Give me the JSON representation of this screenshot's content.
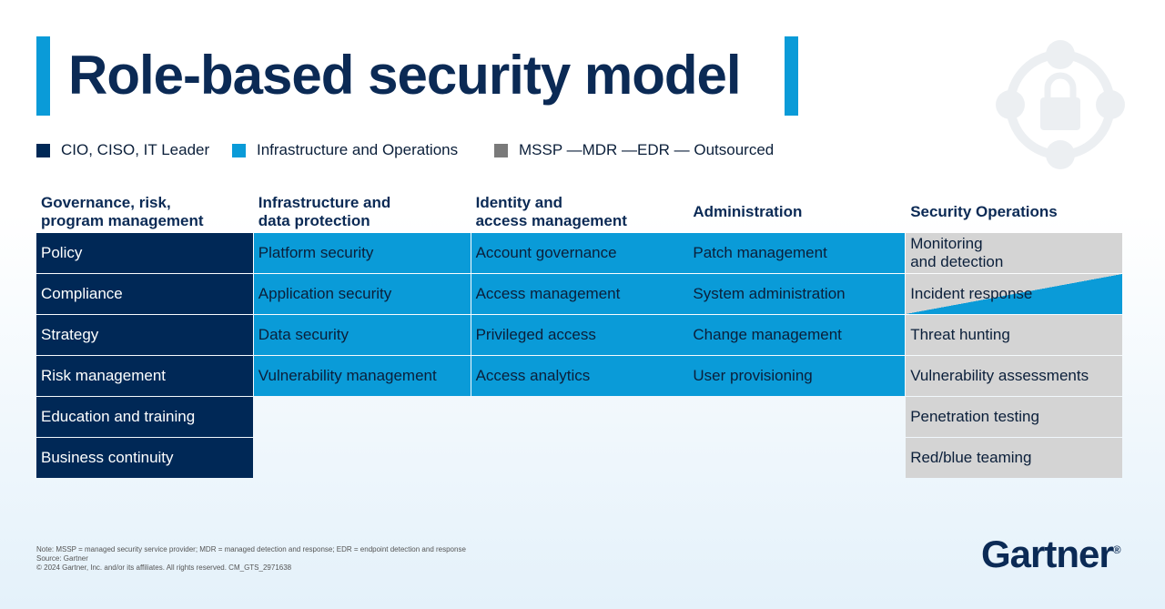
{
  "title": "Role-based security model",
  "legend": [
    {
      "label": "CIO, CISO, IT Leader",
      "color": "#002856"
    },
    {
      "label": "Infrastructure and Operations",
      "color": "#0a9bd8"
    },
    {
      "label": "MSSP —MDR —EDR — Outsourced",
      "color": "#7a7a7a"
    }
  ],
  "columns": [
    {
      "header": "Governance, risk,\nprogram management",
      "fill": "#002856",
      "text_color": "#ffffff",
      "cells": [
        "Policy",
        "Compliance",
        "Strategy",
        "Risk management",
        "Education and training",
        "Business continuity"
      ]
    },
    {
      "header": "Infrastructure and\ndata protection",
      "fill": "#0a9bd8",
      "text_color": "#0b1f3a",
      "cells": [
        "Platform security",
        "Application security",
        "Data security",
        "Vulnerability management"
      ]
    },
    {
      "header": "Identity and\naccess management",
      "fill": "#0a9bd8",
      "text_color": "#0b1f3a",
      "cells": [
        "Account governance",
        "Access management",
        "Privileged access",
        "Access analytics"
      ]
    },
    {
      "header": "Administration",
      "fill": "#0a9bd8",
      "text_color": "#0b1f3a",
      "cells": [
        "Patch management",
        "System administration",
        "Change management",
        "User provisioning"
      ]
    },
    {
      "header": "Security Operations",
      "fill": "#d4d4d4",
      "text_color": "#0b1f3a",
      "diagonal_row": 1,
      "diagonal_color": "#0a9bd8",
      "cells": [
        "Monitoring\nand detection",
        "Incident response",
        "Threat hunting",
        "Vulnerability assessments",
        "Penetration testing",
        "Red/blue teaming"
      ]
    }
  ],
  "notes": [
    "Note: MSSP = managed security service provider; MDR = managed detection and response; EDR = endpoint detection and response",
    "Source: Gartner",
    "© 2024 Gartner, Inc. and/or its affiliates. All rights reserved. CM_GTS_2971638"
  ],
  "logo": "Gartner",
  "logo_mark": "®"
}
